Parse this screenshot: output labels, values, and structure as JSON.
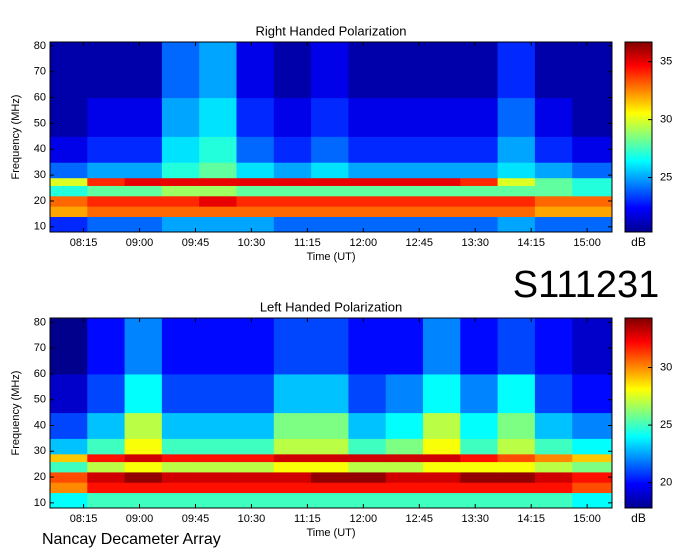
{
  "label": "S111231",
  "footer": "Nancay Decameter Array",
  "chart_data": [
    {
      "type": "heatmap",
      "title": "Right Handed Polarization",
      "xlabel": "Time (UT)",
      "ylabel": "Frequency (MHz)",
      "colorbar_label": "dB",
      "colormap": "jet",
      "x": [
        "07:48",
        "08:18",
        "08:48",
        "09:18",
        "09:48",
        "10:18",
        "10:48",
        "11:18",
        "11:48",
        "12:18",
        "12:48",
        "13:18",
        "13:48",
        "14:18",
        "14:48",
        "15:20"
      ],
      "y": [
        8,
        14,
        18,
        22,
        26,
        29,
        35,
        45,
        60,
        81.5
      ],
      "xlim": [
        "07:48",
        "15:20"
      ],
      "ylim": [
        8,
        81.5
      ],
      "xticks": [
        "08:15",
        "09:00",
        "09:45",
        "10:30",
        "11:15",
        "12:00",
        "12:45",
        "13:30",
        "14:15",
        "15:00"
      ],
      "yticks": [
        10,
        20,
        30,
        40,
        50,
        60,
        70,
        80
      ],
      "clim": [
        20.3,
        36.7
      ],
      "cticks": [
        25,
        30,
        35
      ],
      "values": [
        [
          23,
          24,
          24,
          25,
          25,
          25,
          24,
          24,
          24,
          24,
          24,
          24,
          25,
          24,
          24
        ],
        [
          32,
          33,
          33,
          33,
          33,
          33,
          33,
          33,
          33,
          33,
          33,
          33,
          33,
          32,
          32
        ],
        [
          33,
          34,
          34,
          34,
          35,
          34,
          34,
          34,
          34,
          34,
          34,
          34,
          34,
          33,
          33
        ],
        [
          27,
          28,
          28,
          29,
          29,
          28,
          28,
          28,
          28,
          28,
          28,
          28,
          28,
          28,
          27
        ],
        [
          30,
          34,
          35,
          35,
          35,
          35,
          35,
          35,
          35,
          35,
          35,
          34,
          30,
          28,
          27
        ],
        [
          24,
          25,
          25,
          27,
          28,
          26,
          25,
          26,
          25,
          25,
          25,
          25,
          26,
          25,
          24
        ],
        [
          22,
          23,
          23,
          26,
          27,
          24,
          23,
          24,
          23,
          23,
          23,
          23,
          25,
          23,
          22
        ],
        [
          21,
          22,
          22,
          25,
          26,
          23,
          22,
          23,
          22,
          22,
          22,
          22,
          24,
          22,
          21
        ],
        [
          21,
          21,
          21,
          24,
          25,
          22,
          21,
          22,
          21,
          21,
          21,
          21,
          23,
          21,
          21
        ]
      ]
    },
    {
      "type": "heatmap",
      "title": "Left Handed Polarization",
      "xlabel": "Time (UT)",
      "ylabel": "Frequency (MHz)",
      "colorbar_label": "dB",
      "colormap": "jet",
      "x": [
        "07:48",
        "08:18",
        "08:48",
        "09:18",
        "09:48",
        "10:18",
        "10:48",
        "11:18",
        "11:48",
        "12:18",
        "12:48",
        "13:18",
        "13:48",
        "14:18",
        "14:48",
        "15:20"
      ],
      "y": [
        8,
        14,
        18,
        22,
        26,
        29,
        35,
        45,
        60,
        81.5
      ],
      "xlim": [
        "07:48",
        "15:20"
      ],
      "ylim": [
        8,
        81.7
      ],
      "xticks": [
        "08:15",
        "09:00",
        "09:45",
        "10:30",
        "11:15",
        "12:00",
        "12:45",
        "13:30",
        "14:15",
        "15:00"
      ],
      "yticks": [
        10,
        20,
        30,
        40,
        50,
        60,
        70,
        80
      ],
      "clim": [
        17.8,
        34.3
      ],
      "cticks": [
        20,
        25,
        30
      ],
      "values": [
        [
          24,
          25,
          25,
          25,
          25,
          25,
          25,
          25,
          25,
          25,
          25,
          25,
          25,
          25,
          24
        ],
        [
          30,
          32,
          32,
          32,
          32,
          32,
          32,
          32,
          32,
          32,
          32,
          32,
          32,
          32,
          31
        ],
        [
          31,
          33,
          34,
          33,
          33,
          33,
          33,
          34,
          34,
          33,
          33,
          34,
          34,
          33,
          32
        ],
        [
          25,
          27,
          28,
          27,
          27,
          27,
          28,
          28,
          27,
          27,
          28,
          28,
          28,
          27,
          26
        ],
        [
          29,
          32,
          33,
          32,
          32,
          32,
          33,
          33,
          33,
          33,
          33,
          32,
          31,
          30,
          29
        ],
        [
          23,
          25,
          28,
          25,
          25,
          25,
          27,
          27,
          25,
          26,
          28,
          25,
          27,
          25,
          24
        ],
        [
          21,
          23,
          27,
          23,
          23,
          23,
          26,
          26,
          23,
          24,
          27,
          24,
          26,
          23,
          22
        ],
        [
          19,
          21,
          24,
          21,
          21,
          21,
          23,
          23,
          21,
          22,
          24,
          22,
          24,
          21,
          20
        ],
        [
          18,
          20,
          22,
          20,
          20,
          20,
          21,
          21,
          20,
          20,
          22,
          20,
          21,
          20,
          19
        ]
      ]
    }
  ]
}
